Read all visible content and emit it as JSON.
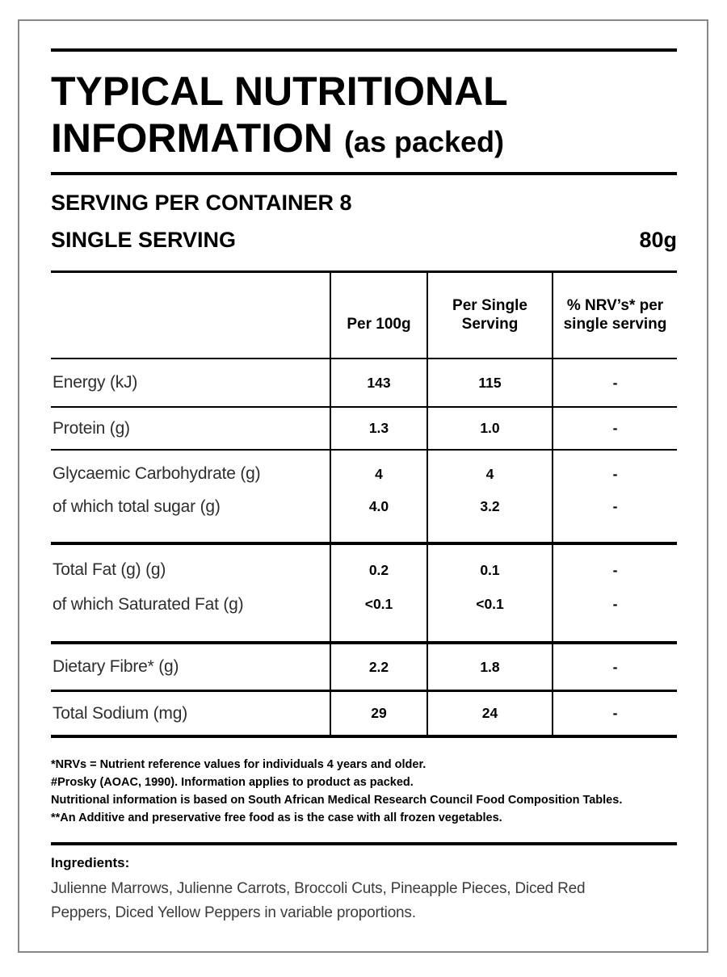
{
  "colors": {
    "ink": "#000000",
    "label_ink": "#2e2e2e",
    "body_ink": "#3c3c3c",
    "frame_gray": "#878787"
  },
  "header": {
    "title_line1": "TYPICAL NUTRITIONAL",
    "title_line2": "INFORMATION",
    "title_suffix": "(as packed)"
  },
  "serving": {
    "per_container": "SERVING PER CONTAINER 8",
    "single_label": "SINGLE SERVING",
    "single_value": "80g"
  },
  "table": {
    "col_headers": {
      "per_100g": "Per 100g",
      "per_serving": "Per Single Serving",
      "nrv": "% NRV’s* per single serving"
    },
    "rows": {
      "energy": {
        "label": "Energy (kJ)",
        "per100": "143",
        "serving": "115",
        "nrv": "-"
      },
      "protein": {
        "label": "Protein (g)",
        "per100": "1.3",
        "serving": "1.0",
        "nrv": "-"
      },
      "carb": {
        "label": "Glycaemic Carbohydrate (g)",
        "per100": "4",
        "serving": "4",
        "nrv": "-"
      },
      "sugar": {
        "label": "of which total sugar (g)",
        "per100": "4.0",
        "serving": "3.2",
        "nrv": "-"
      },
      "fat": {
        "label": "Total Fat (g) (g)",
        "per100": "0.2",
        "serving": "0.1",
        "nrv": "-"
      },
      "satfat": {
        "label": "of which Saturated Fat (g)",
        "per100": "<0.1",
        "serving": "<0.1",
        "nrv": "-"
      },
      "fibre": {
        "label": "Dietary Fibre* (g)",
        "per100": "2.2",
        "serving": "1.8",
        "nrv": "-"
      },
      "sodium": {
        "label": "Total Sodium (mg)",
        "per100": "29",
        "serving": "24",
        "nrv": "-"
      }
    }
  },
  "footnotes": {
    "line1": "*NRVs = Nutrient reference values for individuals 4 years and older.",
    "line2": "#Prosky (AOAC, 1990). Information applies to product as packed.",
    "line3": "Nutritional information is based on South African Medical Research Council Food Composition Tables.",
    "line4": "**An Additive and preservative free food as is the case with all frozen vegetables."
  },
  "ingredients": {
    "heading": "Ingredients:",
    "text": "Julienne Marrows, Julienne Carrots, Broccoli Cuts, Pineapple Pieces, Diced Red Peppers, Diced Yellow Peppers in variable proportions."
  }
}
